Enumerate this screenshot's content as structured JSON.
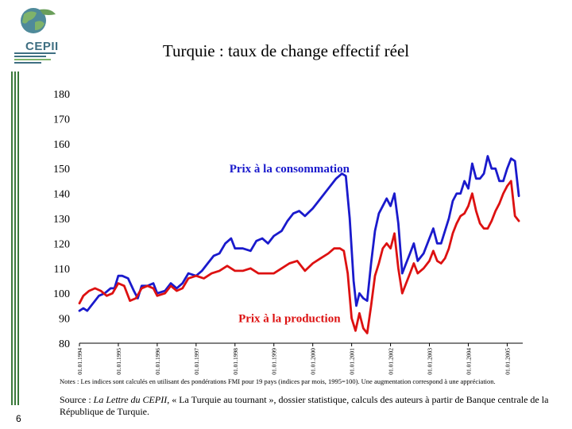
{
  "header": {
    "logo_text": "CEPII",
    "title": "Turquie : taux de change effectif réel"
  },
  "footer": {
    "notes": "Notes : Les indices sont calculés en utilisant des pondérations FMI pour 19 pays (indices par mois, 1995=100). Une augmentation correspond à une appréciation.",
    "source_prefix": "Source : ",
    "source_italic": "La Lettre du CEPII",
    "source_rest": ", « La Turquie au  tournant », dossier statistique, calculs des auteurs à partir de Banque centrale de la République de Turquie.",
    "page_number": "6"
  },
  "colors": {
    "consumption": "#1a1acc",
    "production": "#dd1111",
    "green": "#3a7a3a"
  },
  "chart_data": {
    "type": "line",
    "title": "Turquie : taux de change effectif réel",
    "xlabel": "",
    "ylabel": "",
    "ylim": [
      80,
      180
    ],
    "yticks": [
      80,
      90,
      100,
      110,
      120,
      130,
      140,
      150,
      160,
      170,
      180
    ],
    "xlim": [
      1994.0,
      2005.4
    ],
    "xticks": [
      {
        "x": 1994.0,
        "label": "01.01.1994"
      },
      {
        "x": 1995.0,
        "label": "01.01.1995"
      },
      {
        "x": 1996.0,
        "label": "01.01.1996"
      },
      {
        "x": 1997.0,
        "label": "01.01.1997"
      },
      {
        "x": 1998.0,
        "label": "01.01.1998"
      },
      {
        "x": 1999.0,
        "label": "01.01.1999"
      },
      {
        "x": 2000.0,
        "label": "01.01.2000"
      },
      {
        "x": 2001.0,
        "label": "01.01.2001"
      },
      {
        "x": 2002.0,
        "label": "01.01.2002"
      },
      {
        "x": 2003.0,
        "label": "01.01.2003"
      },
      {
        "x": 2004.0,
        "label": "01.01.2004"
      },
      {
        "x": 2005.0,
        "label": "01.01.2005"
      }
    ],
    "series": [
      {
        "name": "Prix à la consommation",
        "color": "#1a1acc",
        "x": [
          1994.0,
          1994.1,
          1994.2,
          1994.35,
          1994.5,
          1994.65,
          1994.8,
          1994.9,
          1995.0,
          1995.1,
          1995.25,
          1995.4,
          1995.5,
          1995.6,
          1995.75,
          1995.9,
          1996.0,
          1996.2,
          1996.35,
          1996.5,
          1996.65,
          1996.8,
          1997.0,
          1997.15,
          1997.3,
          1997.45,
          1997.6,
          1997.75,
          1997.9,
          1998.0,
          1998.2,
          1998.4,
          1998.55,
          1998.7,
          1998.85,
          1999.0,
          1999.2,
          1999.35,
          1999.5,
          1999.65,
          1999.8,
          2000.0,
          2000.2,
          2000.4,
          2000.6,
          2000.75,
          2000.85,
          2000.95,
          2001.05,
          2001.12,
          2001.2,
          2001.3,
          2001.4,
          2001.5,
          2001.6,
          2001.7,
          2001.8,
          2001.9,
          2002.0,
          2002.1,
          2002.2,
          2002.3,
          2002.4,
          2002.5,
          2002.6,
          2002.7,
          2002.85,
          2003.0,
          2003.1,
          2003.2,
          2003.3,
          2003.4,
          2003.5,
          2003.6,
          2003.7,
          2003.8,
          2003.9,
          2004.0,
          2004.1,
          2004.2,
          2004.3,
          2004.4,
          2004.5,
          2004.6,
          2004.7,
          2004.8,
          2004.9,
          2005.0,
          2005.1,
          2005.2,
          2005.3
        ],
        "values": [
          93,
          94,
          93,
          96,
          99,
          100,
          102,
          102,
          107,
          107,
          106,
          101,
          98,
          103,
          103,
          104,
          100,
          101,
          104,
          102,
          104,
          108,
          107,
          109,
          112,
          115,
          116,
          120,
          122,
          118,
          118,
          117,
          121,
          122,
          120,
          123,
          125,
          129,
          132,
          133,
          131,
          134,
          138,
          142,
          146,
          148,
          147,
          130,
          105,
          95,
          100,
          98,
          97,
          112,
          125,
          132,
          135,
          138,
          135,
          140,
          128,
          108,
          112,
          116,
          120,
          113,
          116,
          122,
          126,
          120,
          120,
          125,
          130,
          137,
          140,
          140,
          145,
          142,
          152,
          146,
          146,
          148,
          155,
          150,
          150,
          145,
          145,
          150,
          154,
          153,
          139
        ]
      },
      {
        "name": "Prix à la production",
        "color": "#dd1111",
        "x": [
          1994.0,
          1994.1,
          1994.25,
          1994.4,
          1994.55,
          1994.7,
          1994.85,
          1995.0,
          1995.15,
          1995.3,
          1995.45,
          1995.6,
          1995.75,
          1995.9,
          1996.0,
          1996.2,
          1996.35,
          1996.5,
          1996.65,
          1996.8,
          1997.0,
          1997.2,
          1997.4,
          1997.6,
          1997.8,
          1998.0,
          1998.2,
          1998.4,
          1998.6,
          1998.8,
          1999.0,
          1999.2,
          1999.4,
          1999.6,
          1999.8,
          2000.0,
          2000.2,
          2000.4,
          2000.55,
          2000.7,
          2000.8,
          2000.9,
          2001.0,
          2001.1,
          2001.2,
          2001.3,
          2001.4,
          2001.5,
          2001.6,
          2001.7,
          2001.8,
          2001.9,
          2002.0,
          2002.1,
          2002.2,
          2002.3,
          2002.4,
          2002.5,
          2002.6,
          2002.7,
          2002.85,
          2003.0,
          2003.1,
          2003.2,
          2003.3,
          2003.4,
          2003.5,
          2003.6,
          2003.7,
          2003.8,
          2003.9,
          2004.0,
          2004.1,
          2004.2,
          2004.3,
          2004.4,
          2004.5,
          2004.6,
          2004.7,
          2004.8,
          2004.9,
          2005.0,
          2005.1,
          2005.2,
          2005.3
        ],
        "values": [
          96,
          99,
          101,
          102,
          101,
          99,
          100,
          104,
          103,
          97,
          98,
          102,
          103,
          102,
          99,
          100,
          103,
          101,
          102,
          106,
          107,
          106,
          108,
          109,
          111,
          109,
          109,
          110,
          108,
          108,
          108,
          110,
          112,
          113,
          109,
          112,
          114,
          116,
          118,
          118,
          117,
          108,
          90,
          85,
          92,
          86,
          84,
          95,
          107,
          112,
          118,
          120,
          118,
          124,
          110,
          100,
          104,
          108,
          112,
          108,
          110,
          113,
          117,
          113,
          112,
          114,
          118,
          124,
          128,
          131,
          132,
          135,
          140,
          133,
          128,
          126,
          126,
          129,
          133,
          136,
          140,
          143,
          145,
          131,
          129
        ]
      }
    ],
    "annotations": [
      {
        "text": "Prix à la consommation",
        "x": 1999.4,
        "y": 150
      },
      {
        "text": "Prix à la production",
        "x": 1999.4,
        "y": 90
      }
    ]
  }
}
